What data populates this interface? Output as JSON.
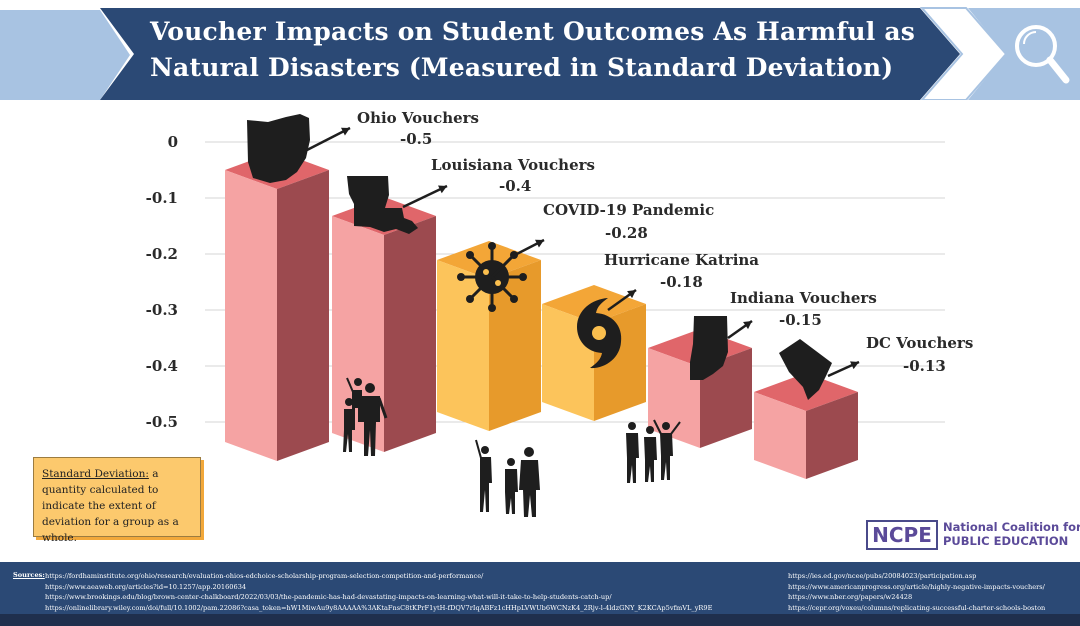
{
  "title": {
    "line1": "Voucher Impacts on Student Outcomes As Harmful as",
    "line2": "Natural Disasters (Measured in Standard Deviation)"
  },
  "colors": {
    "header_bg": "#2b4975",
    "header_accent": "#a8c3e2",
    "voucher_bar": "#f49a9a",
    "disaster_bar": "#fbbf4e",
    "footer_bg": "#2b4975"
  },
  "icons": [
    "search-icon",
    "ohio-map-icon",
    "louisiana-map-icon",
    "virus-icon",
    "hurricane-icon",
    "indiana-map-icon",
    "dc-map-icon",
    "people-silhouette-icon",
    "arrow-icon"
  ],
  "chart_data": {
    "type": "bar",
    "title": "Voucher Impacts on Student Outcomes As Harmful as Natural Disasters (Measured in Standard Deviation)",
    "categories": [
      "Ohio Vouchers",
      "Louisiana Vouchers",
      "COVID-19 Pandemic",
      "Hurricane Katrina",
      "Indiana Vouchers",
      "DC Vouchers"
    ],
    "values": [
      -0.5,
      -0.4,
      -0.28,
      -0.18,
      -0.15,
      -0.13
    ],
    "value_labels": [
      "-0.5",
      "-0.4",
      "-0.28",
      "-0.18",
      "-0.15",
      "-0.13"
    ],
    "bar_kind": [
      "voucher",
      "voucher",
      "disaster",
      "disaster",
      "voucher",
      "voucher"
    ],
    "y_ticks": [
      "0",
      "-0.1",
      "-0.2",
      "-0.3",
      "-0.4",
      "-0.5"
    ],
    "y_tick_values": [
      0,
      -0.1,
      -0.2,
      -0.3,
      -0.4,
      -0.5
    ],
    "ylim": [
      -0.5,
      0
    ],
    "grid": true,
    "xlabel": "",
    "ylabel": ""
  },
  "definition": {
    "term": "Standard Deviation:",
    "text": " a quantity calculated to indicate the extent of deviation for a group as a whole."
  },
  "logo": {
    "abbr": "NCPE",
    "line1": "National Coalition for",
    "line2": "PUBLIC EDUCATION"
  },
  "sources": {
    "label": "Sources:",
    "left": [
      "https://fordhaminstitute.org/ohio/research/evaluation-ohios-edchoice-scholarship-program-selection-competition-and-performance/",
      "https://www.aeaweb.org/articles?id=10.1257/app.20160634",
      "https://www.brookings.edu/blog/brown-center-chalkboard/2022/03/03/the-pandemic-has-had-devastating-impacts-on-learning-what-will-it-take-to-help-students-catch-up/",
      "https://onlinelibrary.wiley.com/doi/full/10.1002/pam.22086?casa_token=hW1MiwAu9y8AAAAA%3AKtaFnsC8tKPrF1ytH-fDQV7rIqABFz1cHHpLVWUb6WCNzK4_2Rjv-l-4ldzGNY_K2KCAp5vfmVL_yR9E"
    ],
    "right": [
      "https://ies.ed.gov/ncee/pubs/20084023/participation.asp",
      "https://www.americanprogress.org/article/highly-negative-impacts-vouchers/",
      "https://www.nber.org/papers/w24428",
      "https://cepr.org/voxeu/columns/replicating-successful-charter-schools-boston"
    ]
  }
}
